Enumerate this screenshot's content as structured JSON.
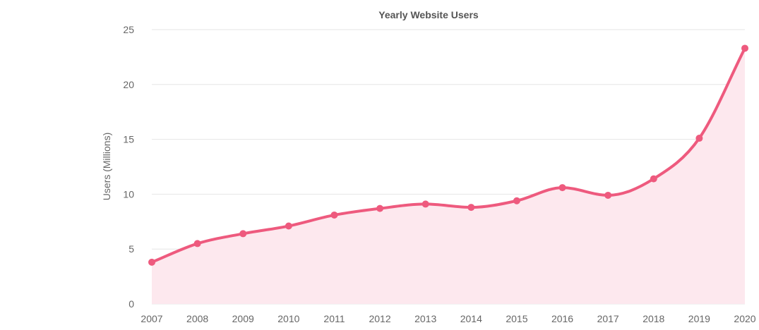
{
  "chart_data": {
    "type": "area",
    "title": "Yearly Website Users",
    "xlabel": "",
    "ylabel": "Users (Millions)",
    "categories": [
      "2007",
      "2008",
      "2009",
      "2010",
      "2011",
      "2012",
      "2013",
      "2014",
      "2015",
      "2016",
      "2017",
      "2018",
      "2019",
      "2020"
    ],
    "series": [
      {
        "values": [
          3.8,
          5.5,
          6.4,
          7.1,
          8.1,
          8.7,
          9.1,
          8.8,
          9.4,
          10.6,
          9.9,
          11.4,
          15.1,
          23.3
        ]
      }
    ],
    "ylim": [
      0,
      25
    ],
    "yticks": [
      "0",
      "5",
      "10",
      "15",
      "20",
      "25"
    ],
    "grid": true,
    "legend": "none",
    "colors": {
      "line": "#ee5a7e",
      "fill": "#fde8ee",
      "grid": "#e6e6e6"
    }
  }
}
